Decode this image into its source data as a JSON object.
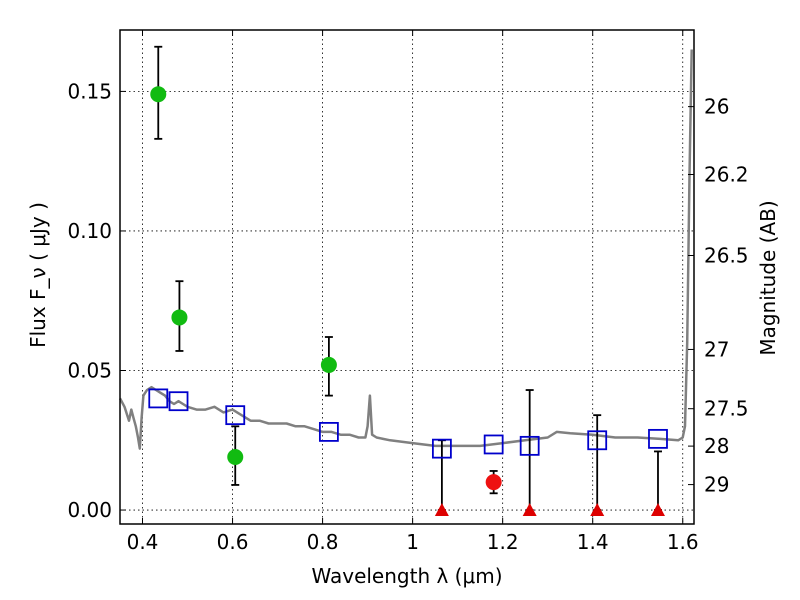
{
  "chart_data": {
    "type": "scatter",
    "xlabel": "Wavelength  λ (μm)",
    "ylabel": "Flux  F_ν  ( μJy )",
    "ylabel_right": "Magnitude (AB)",
    "xlim": [
      0.35,
      1.625
    ],
    "ylim": [
      -0.005,
      0.172
    ],
    "x_ticks": [
      0.4,
      0.6,
      0.8,
      1.0,
      1.2,
      1.4,
      1.6
    ],
    "x_tick_labels": [
      "0.4",
      "0.6",
      "0.8",
      "1",
      "1.2",
      "1.4",
      "1.6"
    ],
    "y_ticks": [
      0.0,
      0.05,
      0.1,
      0.15
    ],
    "y_tick_labels": [
      "0.00",
      "0.05",
      "0.10",
      "0.15"
    ],
    "mag_ticks": [
      26,
      26.2,
      26.5,
      27,
      27.5,
      28,
      29
    ],
    "mag_tick_labels": [
      "26",
      "26.2",
      "26.5",
      "27",
      "27.5",
      "28",
      "29"
    ],
    "grid": true,
    "colors": {
      "detections": "#11bb11",
      "red_detection": "#ee1111",
      "upper_limits": "#dd0000",
      "model_photometry": "#0000cc",
      "sed_model": "#808080"
    },
    "series": [
      {
        "name": "Detections (green)",
        "marker": "circle",
        "points": [
          {
            "x": 0.435,
            "y": 0.149,
            "lo": 0.133,
            "hi": 0.166
          },
          {
            "x": 0.482,
            "y": 0.069,
            "lo": 0.057,
            "hi": 0.082
          },
          {
            "x": 0.606,
            "y": 0.019,
            "lo": 0.009,
            "hi": 0.03
          },
          {
            "x": 0.814,
            "y": 0.052,
            "lo": 0.041,
            "hi": 0.062
          }
        ]
      },
      {
        "name": "Detection (red)",
        "marker": "circle",
        "points": [
          {
            "x": 1.18,
            "y": 0.01,
            "lo": 0.006,
            "hi": 0.014
          }
        ]
      },
      {
        "name": "Non-detections",
        "marker": "triangle",
        "points": [
          {
            "x": 1.065,
            "y": 0.0,
            "lo": 0.0,
            "hi": 0.025
          },
          {
            "x": 1.26,
            "y": 0.0,
            "lo": 0.0,
            "hi": 0.043
          },
          {
            "x": 1.41,
            "y": 0.0,
            "lo": 0.0,
            "hi": 0.034
          },
          {
            "x": 1.545,
            "y": 0.0,
            "lo": 0.0,
            "hi": 0.021
          }
        ]
      },
      {
        "name": "Model photometry",
        "marker": "square-open",
        "points": [
          {
            "x": 0.435,
            "y": 0.04
          },
          {
            "x": 0.48,
            "y": 0.039
          },
          {
            "x": 0.606,
            "y": 0.034
          },
          {
            "x": 0.814,
            "y": 0.028
          },
          {
            "x": 1.065,
            "y": 0.022
          },
          {
            "x": 1.18,
            "y": 0.0235
          },
          {
            "x": 1.26,
            "y": 0.023
          },
          {
            "x": 1.41,
            "y": 0.025
          },
          {
            "x": 1.545,
            "y": 0.0255
          }
        ]
      },
      {
        "name": "SED model",
        "type": "line",
        "points": [
          [
            0.35,
            0.04
          ],
          [
            0.36,
            0.037
          ],
          [
            0.37,
            0.032
          ],
          [
            0.375,
            0.036
          ],
          [
            0.38,
            0.033
          ],
          [
            0.385,
            0.03
          ],
          [
            0.39,
            0.026
          ],
          [
            0.394,
            0.022
          ],
          [
            0.398,
            0.033
          ],
          [
            0.402,
            0.041
          ],
          [
            0.41,
            0.043
          ],
          [
            0.42,
            0.044
          ],
          [
            0.43,
            0.043
          ],
          [
            0.44,
            0.042
          ],
          [
            0.45,
            0.041
          ],
          [
            0.46,
            0.039
          ],
          [
            0.47,
            0.038
          ],
          [
            0.48,
            0.039
          ],
          [
            0.49,
            0.038
          ],
          [
            0.5,
            0.037
          ],
          [
            0.52,
            0.036
          ],
          [
            0.54,
            0.036
          ],
          [
            0.56,
            0.037
          ],
          [
            0.58,
            0.035
          ],
          [
            0.6,
            0.036
          ],
          [
            0.62,
            0.034
          ],
          [
            0.64,
            0.032
          ],
          [
            0.66,
            0.032
          ],
          [
            0.68,
            0.031
          ],
          [
            0.7,
            0.031
          ],
          [
            0.72,
            0.031
          ],
          [
            0.74,
            0.03
          ],
          [
            0.76,
            0.03
          ],
          [
            0.78,
            0.029
          ],
          [
            0.8,
            0.028
          ],
          [
            0.82,
            0.028
          ],
          [
            0.84,
            0.027
          ],
          [
            0.86,
            0.027
          ],
          [
            0.88,
            0.026
          ],
          [
            0.895,
            0.026
          ],
          [
            0.9,
            0.03
          ],
          [
            0.905,
            0.041
          ],
          [
            0.91,
            0.027
          ],
          [
            0.92,
            0.026
          ],
          [
            0.95,
            0.025
          ],
          [
            1.0,
            0.024
          ],
          [
            1.05,
            0.023
          ],
          [
            1.1,
            0.023
          ],
          [
            1.15,
            0.023
          ],
          [
            1.2,
            0.024
          ],
          [
            1.25,
            0.025
          ],
          [
            1.3,
            0.026
          ],
          [
            1.32,
            0.028
          ],
          [
            1.35,
            0.0275
          ],
          [
            1.4,
            0.027
          ],
          [
            1.45,
            0.026
          ],
          [
            1.5,
            0.026
          ],
          [
            1.55,
            0.0255
          ],
          [
            1.59,
            0.025
          ],
          [
            1.6,
            0.026
          ],
          [
            1.605,
            0.03
          ],
          [
            1.61,
            0.06
          ],
          [
            1.615,
            0.12
          ],
          [
            1.62,
            0.165
          ]
        ]
      }
    ]
  }
}
